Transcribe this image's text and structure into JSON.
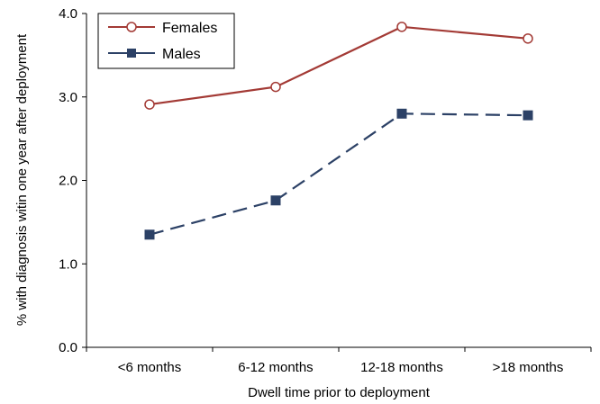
{
  "chart_data": {
    "type": "line",
    "title": "",
    "xlabel": "Dwell time prior to deployment",
    "ylabel": "% with diagnosis witin one year after deployment",
    "categories": [
      "<6 months",
      "6-12 months",
      "12-18 months",
      ">18 months"
    ],
    "ylim": [
      0,
      4
    ],
    "yticks": [
      "0.0",
      "1.0",
      "2.0",
      "3.0",
      "4.0"
    ],
    "grid": false,
    "legend_position": "top-left",
    "series": [
      {
        "name": "Females",
        "values": [
          2.91,
          3.12,
          3.84,
          3.7
        ],
        "color": "#a33a35",
        "marker": "open-circle",
        "line_style": "solid"
      },
      {
        "name": "Males",
        "values": [
          1.35,
          1.76,
          2.8,
          2.78
        ],
        "color": "#2c4166",
        "marker": "filled-square",
        "line_style": "dashed"
      }
    ]
  }
}
